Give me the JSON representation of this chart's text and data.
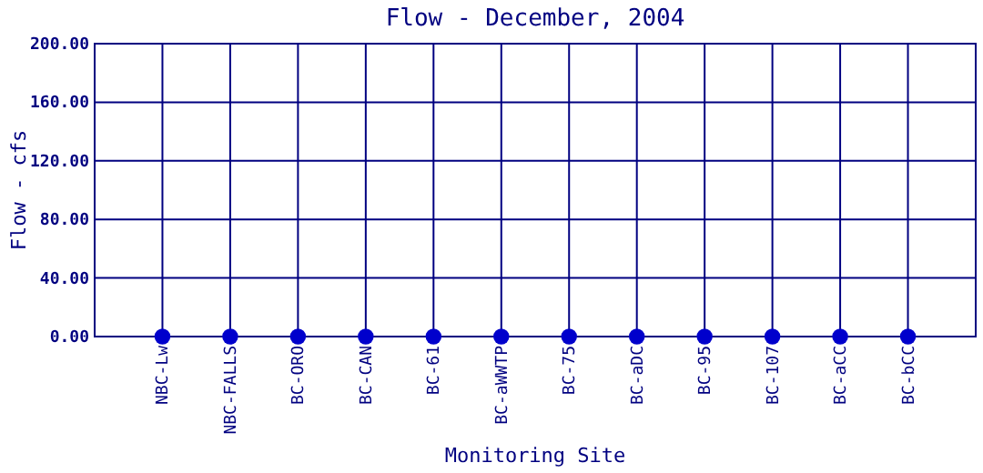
{
  "chart_data": {
    "type": "scatter",
    "title": "Flow - December, 2004",
    "xlabel": "Monitoring Site",
    "ylabel": "Flow - cfs",
    "categories": [
      "NBC-Lw",
      "NBC-FALLS",
      "BC-ORO",
      "BC-CAN",
      "BC-61",
      "BC-aWWTP",
      "BC-75",
      "BC-aDC",
      "BC-95",
      "BC-107",
      "BC-aCC",
      "BC-bCC"
    ],
    "series": [
      {
        "color": "#0000cc",
        "values": [
          0,
          0,
          0,
          0,
          0,
          0,
          0,
          0,
          0,
          0,
          0,
          0
        ]
      }
    ],
    "ylim": [
      0,
      200
    ],
    "yticks": [
      {
        "value": 0,
        "label": "0.00"
      },
      {
        "value": 40,
        "label": "40.00"
      },
      {
        "value": 80,
        "label": "80.00"
      },
      {
        "value": 120,
        "label": "120.00"
      },
      {
        "value": 160,
        "label": "160.00"
      },
      {
        "value": 200,
        "label": "200.00"
      }
    ],
    "grid": true,
    "marker": "circle"
  }
}
